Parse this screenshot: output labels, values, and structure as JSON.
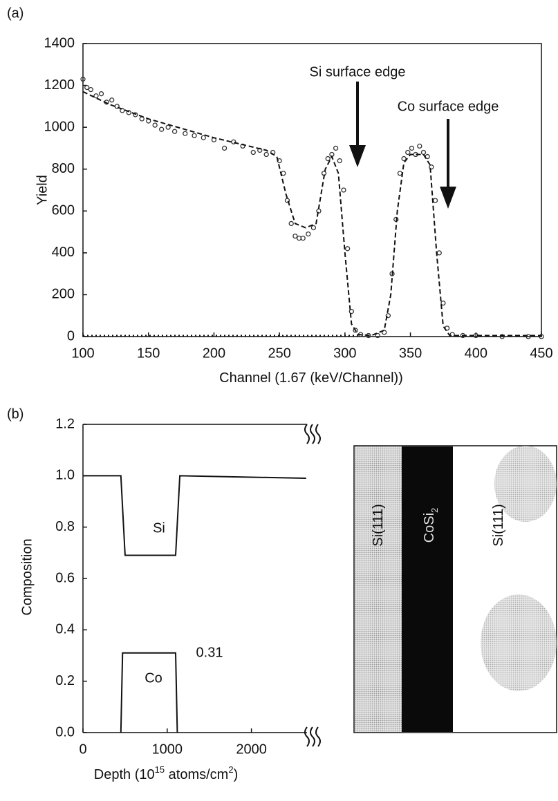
{
  "panels": [
    "(a)",
    "(b)"
  ],
  "chart_data": [
    {
      "type": "scatter",
      "y_label": "Yield",
      "x_label": [
        {
          "text": "Channel (1.67 (keV/Channel))"
        }
      ],
      "xlim": [
        100,
        450
      ],
      "xticks": [
        100,
        150,
        200,
        250,
        300,
        350,
        400,
        450
      ],
      "ylim": [
        0,
        1400
      ],
      "yticks": [
        0,
        200,
        400,
        600,
        800,
        1000,
        1200,
        1400
      ],
      "annotations": [
        "Si surface edge",
        "Co surface edge"
      ],
      "series": [
        {
          "style": "points",
          "color": "#333333",
          "x": [
            100,
            103,
            106,
            110,
            114,
            118,
            122,
            126,
            130,
            135,
            140,
            145,
            150,
            155,
            160,
            165,
            170,
            178,
            185,
            192,
            200,
            208,
            215,
            222,
            230,
            235,
            240,
            245,
            250,
            253,
            256,
            259,
            262,
            265,
            268,
            272,
            276,
            280,
            284,
            287,
            290,
            293,
            296,
            299,
            302,
            305,
            308,
            312,
            318,
            325,
            330,
            333,
            336,
            339,
            342,
            345,
            348,
            351,
            354,
            357,
            360,
            363,
            366,
            369,
            372,
            375,
            378,
            382,
            390,
            400,
            420,
            440,
            450
          ],
          "values": [
            1230,
            1190,
            1180,
            1150,
            1160,
            1120,
            1130,
            1100,
            1080,
            1070,
            1060,
            1040,
            1030,
            1010,
            990,
            1000,
            980,
            970,
            960,
            950,
            940,
            900,
            930,
            910,
            880,
            890,
            870,
            880,
            840,
            780,
            650,
            540,
            480,
            470,
            470,
            490,
            520,
            600,
            780,
            850,
            870,
            900,
            840,
            700,
            420,
            120,
            30,
            10,
            5,
            5,
            20,
            100,
            300,
            560,
            780,
            850,
            880,
            900,
            870,
            910,
            880,
            860,
            810,
            650,
            400,
            160,
            40,
            10,
            5,
            5,
            0,
            0,
            0
          ]
        },
        {
          "style": "dashed",
          "color": "#111111",
          "x": [
            100,
            120,
            150,
            200,
            240,
            248,
            255,
            262,
            270,
            278,
            285,
            290,
            295,
            300,
            305,
            310,
            320,
            330,
            335,
            340,
            345,
            350,
            360,
            365,
            370,
            375,
            380,
            450
          ],
          "values": [
            1170,
            1110,
            1040,
            950,
            890,
            860,
            680,
            540,
            520,
            540,
            800,
            860,
            780,
            400,
            60,
            10,
            5,
            30,
            200,
            600,
            830,
            870,
            870,
            820,
            400,
            50,
            5,
            5
          ]
        },
        {
          "style": "dotted",
          "color": "#111111",
          "x": [
            100,
            310
          ],
          "values": [
            5,
            5
          ]
        }
      ]
    },
    {
      "type": "line",
      "y_label": "Composition",
      "x_label": [
        {
          "text": "Depth (10"
        },
        {
          "text": "15",
          "sup": true
        },
        {
          "text": " atoms/cm"
        },
        {
          "text": "2",
          "sup": true
        },
        {
          "text": ")"
        }
      ],
      "xlim": [
        0,
        2660
      ],
      "xticks": [
        0,
        1000,
        2000
      ],
      "ylim": [
        0,
        1.2
      ],
      "yticks": [
        {
          "value": 0,
          "label": "0.0"
        },
        0.2,
        0.4,
        0.6,
        0.8,
        {
          "value": 1,
          "label": "1.0"
        },
        1.2
      ],
      "annotations": [
        "Si",
        "Co",
        "0.31"
      ],
      "series": [
        {
          "style": "solid",
          "color": "#111111",
          "x": [
            0,
            450,
            500,
            1100,
            1150,
            2650
          ],
          "values": [
            1.0,
            1.0,
            0.69,
            0.69,
            1.0,
            0.99
          ]
        },
        {
          "style": "solid",
          "color": "#111111",
          "x": [
            450,
            470,
            1100,
            1120
          ],
          "values": [
            0,
            0.31,
            0.31,
            0
          ]
        }
      ]
    }
  ],
  "layers": [
    [
      {
        "text": "Si(111)"
      }
    ],
    [
      {
        "text": "CoSi"
      },
      {
        "text": "2",
        "sub": true
      }
    ],
    [
      {
        "text": "Si(111)"
      }
    ]
  ]
}
